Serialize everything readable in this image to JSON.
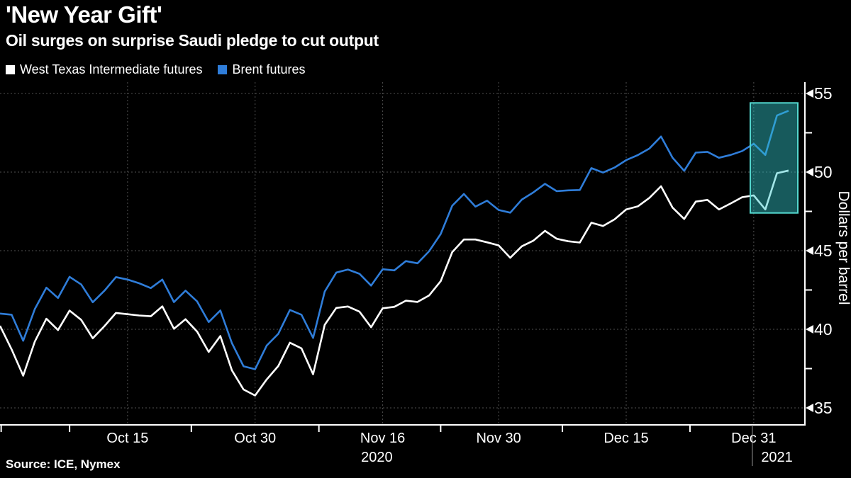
{
  "header": {
    "title": "'New Year Gift'",
    "subtitle": "Oil surges on surprise Saudi pledge to cut output"
  },
  "legend": [
    {
      "label": "West Texas Intermediate futures",
      "color": "#ffffff"
    },
    {
      "label": "Brent futures",
      "color": "#2F7DD9"
    }
  ],
  "source": "Source: ICE, Nymex",
  "colors": {
    "background": "#000000",
    "grid": "#4f4f4f",
    "axis": "#ffffff",
    "wti_line": "#ffffff",
    "brent_line": "#2F7DD9",
    "highlight_fill": "rgba(51,200,204,0.45)",
    "highlight_stroke": "#54d8cf",
    "year_divider": "#9a9a9a"
  },
  "chart_data": {
    "type": "line",
    "title": "'New Year Gift'",
    "subtitle": "Oil surges on surprise Saudi pledge to cut output",
    "ylabel": "Dollars per barrel",
    "ylim": [
      35,
      55
    ],
    "grid": true,
    "legend_position": "top-left",
    "y_ticks": [
      55,
      50,
      45,
      40,
      35
    ],
    "y_minor_ticks": [
      52.5,
      47.5,
      42.5,
      37.5
    ],
    "dates": [
      "Sep 30",
      "Oct 1",
      "Oct 2",
      "Oct 5",
      "Oct 6",
      "Oct 7",
      "Oct 8",
      "Oct 9",
      "Oct 12",
      "Oct 13",
      "Oct 14",
      "Oct 15",
      "Oct 16",
      "Oct 19",
      "Oct 20",
      "Oct 21",
      "Oct 22",
      "Oct 23",
      "Oct 26",
      "Oct 27",
      "Oct 28",
      "Oct 29",
      "Oct 30",
      "Nov 2",
      "Nov 3",
      "Nov 4",
      "Nov 5",
      "Nov 6",
      "Nov 9",
      "Nov 10",
      "Nov 11",
      "Nov 12",
      "Nov 13",
      "Nov 16",
      "Nov 17",
      "Nov 18",
      "Nov 19",
      "Nov 20",
      "Nov 23",
      "Nov 24",
      "Nov 25",
      "Nov 26",
      "Nov 27",
      "Nov 30",
      "Dec 1",
      "Dec 2",
      "Dec 3",
      "Dec 4",
      "Dec 7",
      "Dec 8",
      "Dec 9",
      "Dec 10",
      "Dec 11",
      "Dec 14",
      "Dec 15",
      "Dec 16",
      "Dec 17",
      "Dec 18",
      "Dec 21",
      "Dec 22",
      "Dec 23",
      "Dec 24",
      "Dec 28",
      "Dec 29",
      "Dec 30",
      "Dec 31",
      "Jan 4",
      "Jan 5",
      "Jan 6"
    ],
    "series": [
      {
        "name": "West Texas Intermediate futures",
        "color": "#ffffff",
        "values": [
          40.22,
          38.72,
          37.05,
          39.22,
          40.67,
          39.95,
          41.19,
          40.6,
          39.43,
          40.2,
          41.04,
          40.96,
          40.88,
          40.83,
          41.46,
          40.03,
          40.64,
          39.85,
          38.56,
          39.57,
          37.39,
          36.17,
          35.79,
          36.81,
          37.66,
          39.15,
          38.79,
          37.14,
          40.29,
          41.36,
          41.45,
          41.12,
          40.13,
          41.34,
          41.43,
          41.82,
          41.74,
          42.15,
          43.06,
          44.91,
          45.71,
          45.71,
          45.53,
          45.34,
          44.55,
          45.28,
          45.64,
          46.26,
          45.76,
          45.6,
          45.52,
          46.78,
          46.57,
          46.99,
          47.62,
          47.82,
          48.36,
          49.1,
          47.74,
          47.02,
          48.12,
          48.23,
          47.62,
          48.0,
          48.4,
          48.52,
          47.62,
          49.93,
          50.1
        ]
      },
      {
        "name": "Brent futures",
        "color": "#2F7DD9",
        "values": [
          41.0,
          40.93,
          39.27,
          41.29,
          42.65,
          41.99,
          43.34,
          42.85,
          41.72,
          42.45,
          43.32,
          43.16,
          42.93,
          42.62,
          43.16,
          41.73,
          42.46,
          41.77,
          40.46,
          41.2,
          39.12,
          37.65,
          37.46,
          38.97,
          39.71,
          41.23,
          40.93,
          39.45,
          42.4,
          43.61,
          43.8,
          43.53,
          42.78,
          43.82,
          43.75,
          44.34,
          44.2,
          44.96,
          46.06,
          47.86,
          48.61,
          47.8,
          48.18,
          47.59,
          47.42,
          48.25,
          48.71,
          49.25,
          48.79,
          48.84,
          48.86,
          50.25,
          49.97,
          50.29,
          50.76,
          51.08,
          51.5,
          52.26,
          50.91,
          50.08,
          51.24,
          51.29,
          50.91,
          51.09,
          51.34,
          51.8,
          51.09,
          53.6,
          53.9
        ]
      }
    ],
    "x_tick_labels": [
      {
        "label": "Oct 15",
        "index": 11
      },
      {
        "label": "Oct 30",
        "index": 22
      },
      {
        "label": "Nov 16",
        "index": 33
      },
      {
        "label": "Nov 30",
        "index": 43
      },
      {
        "label": "Dec 15",
        "index": 54
      },
      {
        "label": "Dec 31",
        "index": 65
      }
    ],
    "x_axis_tick_indices": [
      0.1,
      6,
      16.5,
      27.5,
      38,
      48.5,
      59.5
    ],
    "year_labels": [
      {
        "label": "2020",
        "index": 32.5
      },
      {
        "label": "2021",
        "index": 67
      }
    ],
    "year_divider_index": 65,
    "highlight_box": {
      "from_index": 64.7,
      "to_index": 68.8,
      "from_value": 47.4,
      "to_value": 54.4
    }
  }
}
